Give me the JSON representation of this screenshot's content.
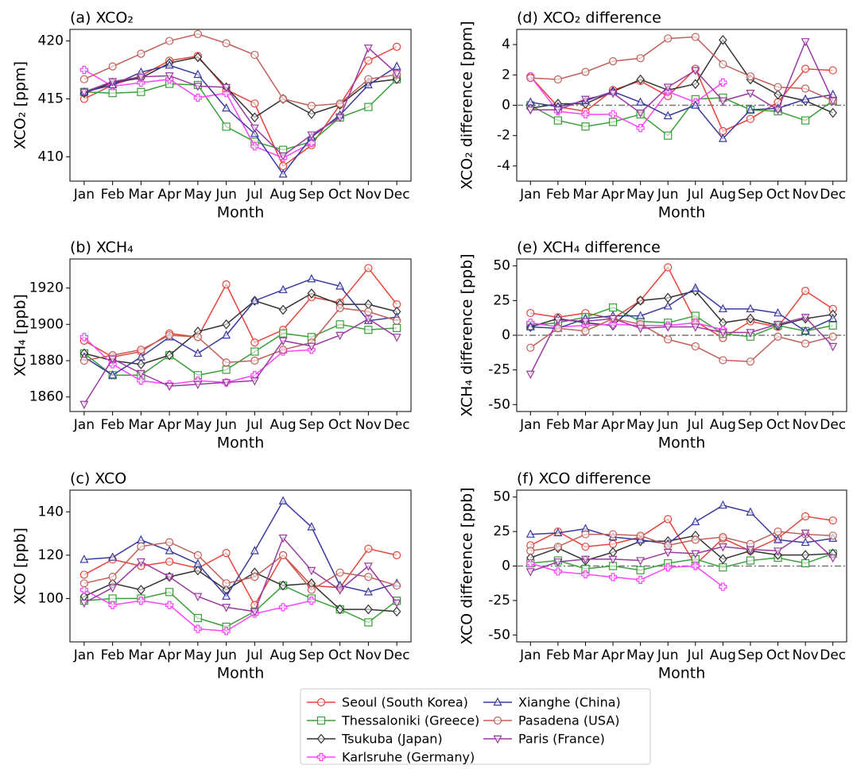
{
  "chart_data": [
    {
      "type": "line",
      "title": "(a) XCO₂",
      "xlabel": "Month",
      "ylabel": "XCO₂ [ppm]",
      "categories": [
        "Jan",
        "Feb",
        "Mar",
        "Apr",
        "May",
        "Jun",
        "Jul",
        "Aug",
        "Sep",
        "Oct",
        "Nov",
        "Dec"
      ],
      "ylim": [
        407.9,
        421.0
      ],
      "yticks": [
        410,
        415,
        420
      ],
      "series": [
        {
          "name": "Seoul (South Korea)",
          "color": "#e8443a",
          "marker": "o",
          "values": [
            415.0,
            416.2,
            417.0,
            418.3,
            418.7,
            415.8,
            414.6,
            409.2,
            411.0,
            414.5,
            418.3,
            419.5
          ]
        },
        {
          "name": "Thessaloniki (Greece)",
          "color": "#3aa03a",
          "marker": "s",
          "values": [
            415.6,
            415.5,
            415.6,
            416.3,
            416.2,
            412.6,
            411.3,
            410.6,
            411.3,
            413.4,
            414.3,
            416.7
          ]
        },
        {
          "name": "Tsukuba (Japan)",
          "color": "#333333",
          "marker": "D",
          "values": [
            415.5,
            416.4,
            416.8,
            418.1,
            418.6,
            416.0,
            413.4,
            415.0,
            413.7,
            414.5,
            416.4,
            416.7
          ]
        },
        {
          "name": "Karlsruhe (Germany)",
          "color": "#ff44ff",
          "marker": "P",
          "values": [
            417.5,
            416.1,
            416.4,
            416.7,
            415.1,
            415.5,
            410.9,
            409.9,
            411.2,
            null,
            null,
            null
          ]
        },
        {
          "name": "Xianghe (China)",
          "color": "#3a3aa0",
          "marker": "^",
          "values": [
            415.6,
            416.2,
            417.3,
            417.9,
            417.1,
            414.2,
            412.0,
            408.5,
            411.7,
            413.6,
            416.2,
            417.8
          ]
        },
        {
          "name": "Pasadena (USA)",
          "color": "#c0605a",
          "marker": "o",
          "values": [
            416.7,
            417.8,
            418.9,
            420.0,
            420.6,
            419.8,
            418.8,
            415.0,
            414.4,
            414.6,
            416.7,
            417.1
          ]
        },
        {
          "name": "Paris (France)",
          "color": "#9a3aa0",
          "marker": "v",
          "values": [
            415.6,
            416.5,
            416.9,
            417.0,
            416.1,
            416.0,
            412.5,
            410.1,
            411.9,
            413.4,
            419.4,
            417.2
          ]
        }
      ]
    },
    {
      "type": "line",
      "title": "(b) XCH₄",
      "xlabel": "Month",
      "ylabel": "XCH₄ [ppb]",
      "categories": [
        "Jan",
        "Feb",
        "Mar",
        "Apr",
        "May",
        "Jun",
        "Jul",
        "Aug",
        "Sep",
        "Oct",
        "Nov",
        "Dec"
      ],
      "ylim": [
        1852,
        1936
      ],
      "yticks": [
        1860,
        1880,
        1900,
        1920
      ],
      "series": [
        {
          "values": [
            1891,
            1882,
            1885,
            1895,
            1893,
            1922,
            1890,
            1897,
            1915,
            1912,
            1931,
            1911
          ]
        },
        {
          "values": [
            1884,
            1872,
            1872,
            1883,
            1872,
            1875,
            1885,
            1895,
            1893,
            1900,
            1897,
            1898
          ]
        },
        {
          "values": [
            1884,
            1880,
            1878,
            1883,
            1896,
            1900,
            1913,
            1908,
            1917,
            1911,
            1911,
            1907
          ]
        },
        {
          "values": [
            1893,
            1878,
            1869,
            1867,
            1869,
            1868,
            1872,
            1885,
            1886,
            null,
            null,
            null
          ]
        },
        {
          "values": [
            1882,
            1872,
            1882,
            1893,
            1884,
            1894,
            1913,
            1919,
            1925,
            1921,
            1902,
            1904
          ]
        },
        {
          "values": [
            1880,
            1883,
            1886,
            1894,
            1893,
            1879,
            1880,
            1886,
            1890,
            1909,
            1907,
            1902
          ]
        },
        {
          "values": [
            1856,
            1881,
            1873,
            1866,
            1867,
            1868,
            1869,
            1891,
            1888,
            1894,
            1903,
            1893
          ]
        }
      ]
    },
    {
      "type": "line",
      "title": "(c) XCO",
      "xlabel": "Month",
      "ylabel": "XCO [ppb]",
      "categories": [
        "Jan",
        "Feb",
        "Mar",
        "Apr",
        "May",
        "Jun",
        "Jul",
        "Aug",
        "Sep",
        "Oct",
        "Nov",
        "Dec"
      ],
      "ylim": [
        80,
        150
      ],
      "yticks": [
        100,
        120,
        140
      ],
      "series": [
        {
          "values": [
            111,
            118,
            115,
            117,
            114,
            121,
            97,
            120,
            106,
            105,
            123,
            120
          ]
        },
        {
          "values": [
            99,
            100,
            100,
            103,
            91,
            87,
            94,
            106,
            100,
            95,
            89,
            99
          ]
        },
        {
          "values": [
            101,
            107,
            104,
            110,
            113,
            104,
            112,
            106,
            107,
            95,
            95,
            94
          ]
        },
        {
          "values": [
            104,
            97,
            99,
            97,
            86,
            85,
            93,
            96,
            99,
            null,
            null,
            null
          ]
        },
        {
          "values": [
            118,
            119,
            127,
            122,
            116,
            101,
            122,
            145,
            133,
            106,
            103,
            107
          ]
        },
        {
          "values": [
            107,
            110,
            124,
            126,
            120,
            107,
            110,
            120,
            104,
            112,
            110,
            106
          ]
        },
        {
          "values": [
            98,
            105,
            117,
            110,
            101,
            96,
            94,
            128,
            113,
            104,
            115,
            98
          ]
        }
      ]
    },
    {
      "type": "line",
      "title": "(d) XCO₂ difference",
      "xlabel": "Month",
      "ylabel": "XCO₂ difference [ppm]",
      "categories": [
        "Jan",
        "Feb",
        "Mar",
        "Apr",
        "May",
        "Jun",
        "Jul",
        "Aug",
        "Sep",
        "Oct",
        "Nov",
        "Dec"
      ],
      "ylim": [
        -5,
        5
      ],
      "yticks": [
        -4,
        -2,
        0,
        2,
        4
      ],
      "reference_line": 0,
      "series": [
        {
          "values": [
            1.9,
            -0.1,
            -0.4,
            1.0,
            1.6,
            0.6,
            2.4,
            -1.7,
            -0.9,
            0.2,
            2.4,
            2.3
          ]
        },
        {
          "values": [
            0.0,
            -1.0,
            -1.4,
            -1.1,
            -0.6,
            -2.0,
            0.4,
            0.5,
            -0.3,
            -0.4,
            -1.0,
            0.3
          ]
        },
        {
          "values": [
            -0.2,
            0.1,
            0.1,
            0.9,
            1.7,
            1.0,
            1.4,
            4.3,
            1.7,
            0.7,
            0.3,
            -0.5
          ]
        },
        {
          "values": [
            1.9,
            -0.4,
            -0.6,
            -0.6,
            -1.5,
            0.9,
            0.2,
            1.5,
            null,
            null,
            null,
            null
          ]
        },
        {
          "values": [
            0.2,
            -0.1,
            0.3,
            0.9,
            0.2,
            -0.7,
            0.0,
            -2.2,
            -0.3,
            -0.2,
            0.4,
            0.7
          ]
        },
        {
          "values": [
            1.8,
            1.7,
            2.2,
            2.9,
            3.1,
            4.4,
            4.5,
            2.7,
            1.9,
            1.2,
            1.1,
            0.3
          ]
        },
        {
          "values": [
            -0.3,
            -0.3,
            0.4,
            0.8,
            -0.5,
            1.2,
            2.3,
            0.3,
            0.8,
            -0.3,
            4.2,
            0.3
          ]
        }
      ]
    },
    {
      "type": "line",
      "title": "(e) XCH₄ difference",
      "xlabel": "Month",
      "ylabel": "XCH₄ difference [ppb]",
      "categories": [
        "Jan",
        "Feb",
        "Mar",
        "Apr",
        "May",
        "Jun",
        "Jul",
        "Aug",
        "Sep",
        "Oct",
        "Nov",
        "Dec"
      ],
      "ylim": [
        -55,
        55
      ],
      "yticks": [
        -50,
        -25,
        0,
        25,
        50
      ],
      "reference_line": 0,
      "series": [
        {
          "values": [
            16,
            13,
            16,
            12,
            25,
            49,
            10,
            -2,
            10,
            6,
            32,
            19
          ]
        },
        {
          "values": [
            7,
            9,
            13,
            20,
            10,
            9,
            14,
            1,
            -1,
            7,
            3,
            7
          ]
        },
        {
          "values": [
            6,
            12,
            9,
            7,
            25,
            27,
            32,
            9,
            12,
            7,
            12,
            15
          ]
        },
        {
          "values": [
            9,
            6,
            7,
            8,
            7,
            7,
            9,
            4,
            null,
            null,
            null,
            null
          ]
        },
        {
          "values": [
            6,
            5,
            12,
            14,
            14,
            21,
            34,
            19,
            19,
            16,
            3,
            12
          ]
        },
        {
          "values": [
            -9,
            5,
            3,
            12,
            8,
            -3,
            -8,
            -18,
            -19,
            -1,
            -6,
            -1
          ]
        },
        {
          "values": [
            -28,
            11,
            10,
            12,
            5,
            6,
            6,
            2,
            2,
            8,
            13,
            -8
          ]
        }
      ]
    },
    {
      "type": "line",
      "title": "(f) XCO difference",
      "xlabel": "Month",
      "ylabel": "XCO difference [ppb]",
      "categories": [
        "Jan",
        "Feb",
        "Mar",
        "Apr",
        "May",
        "Jun",
        "Jul",
        "Aug",
        "Sep",
        "Oct",
        "Nov",
        "Dec"
      ],
      "ylim": [
        -55,
        55
      ],
      "yticks": [
        -50,
        -25,
        0,
        25,
        50
      ],
      "reference_line": 0,
      "series": [
        {
          "values": [
            15,
            25,
            14,
            16,
            21,
            34,
            1,
            20,
            11,
            20,
            36,
            33
          ]
        },
        {
          "values": [
            2,
            4,
            -2,
            0,
            -3,
            2,
            5,
            -1,
            4,
            6,
            2,
            9
          ]
        },
        {
          "values": [
            6,
            13,
            4,
            10,
            18,
            18,
            22,
            5,
            11,
            8,
            8,
            9
          ]
        },
        {
          "values": [
            2,
            -4,
            -6,
            -8,
            -10,
            -1,
            0,
            -15,
            null,
            null,
            null,
            null
          ]
        },
        {
          "values": [
            23,
            24,
            27,
            21,
            19,
            16,
            32,
            44,
            39,
            19,
            17,
            20
          ]
        },
        {
          "values": [
            11,
            14,
            23,
            23,
            22,
            15,
            19,
            21,
            16,
            25,
            23,
            22
          ]
        },
        {
          "values": [
            -4,
            3,
            5,
            5,
            4,
            10,
            9,
            14,
            12,
            11,
            24,
            6
          ]
        }
      ]
    }
  ]
}
